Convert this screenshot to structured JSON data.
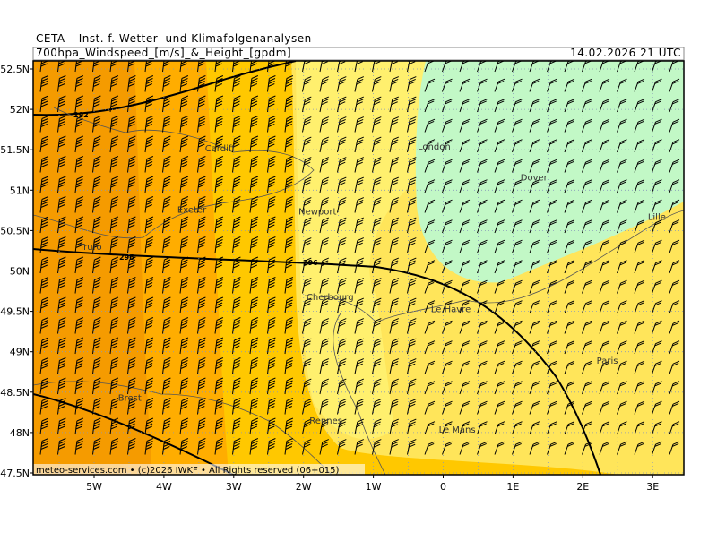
{
  "header": {
    "title": "CETA – Inst. f. Wetter- und Klimafolgenanalysen –",
    "subtitle": "700hpa_Windspeed_[m/s]_&_Height_[gpdm]",
    "date": "14.02.2026 21 UTC"
  },
  "map": {
    "lat_ticks": [
      {
        "value": 52.5,
        "label": "52.5N"
      },
      {
        "value": 52,
        "label": "52N"
      },
      {
        "value": 51.5,
        "label": "51.5N"
      },
      {
        "value": 51,
        "label": "51N"
      },
      {
        "value": 50.5,
        "label": "50.5N"
      },
      {
        "value": 50,
        "label": "50N"
      },
      {
        "value": 49.5,
        "label": "49.5N"
      },
      {
        "value": 49,
        "label": "49N"
      },
      {
        "value": 48.5,
        "label": "48.5N"
      },
      {
        "value": 48,
        "label": "48N"
      },
      {
        "value": 47.5,
        "label": "47.5N"
      }
    ],
    "lon_ticks": [
      {
        "value": -5,
        "label": "5W"
      },
      {
        "value": -4,
        "label": "4W"
      },
      {
        "value": -3,
        "label": "3W"
      },
      {
        "value": -2,
        "label": "2W"
      },
      {
        "value": -1,
        "label": "1W"
      },
      0,
      {
        "value": 1,
        "label": "1E"
      },
      {
        "value": 2,
        "label": "2E"
      },
      {
        "value": 3,
        "label": "3E"
      }
    ],
    "cities": [
      "Cardiff",
      "London",
      "Dover",
      "Exeter",
      "Newport",
      "Truro",
      "Lille",
      "Cherbourg",
      "Le Havre",
      "Paris",
      "Brest",
      "Rennes",
      "Le Mans"
    ],
    "contour_labels": [
      "292",
      "296",
      "296"
    ]
  },
  "footer": "meteo-services.com • (c)2026 IWKF • All Rights reserved (06+015)"
}
